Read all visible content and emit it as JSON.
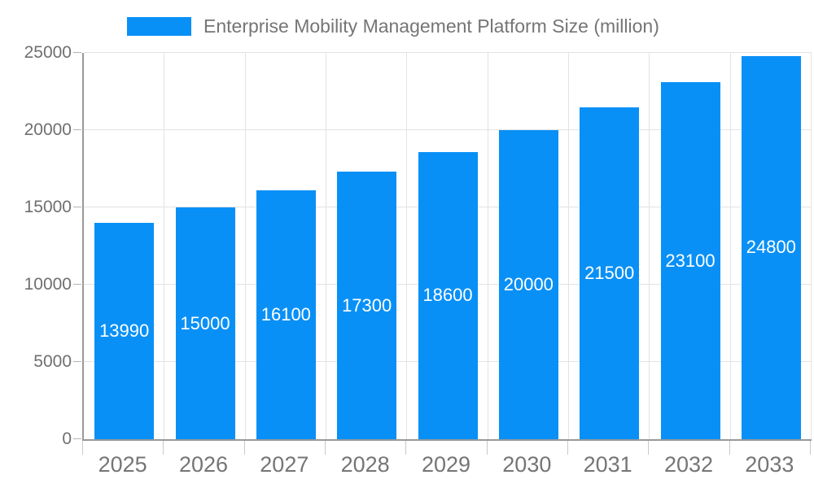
{
  "legend": {
    "label": "Enterprise Mobility Management Platform Size (million)"
  },
  "chart_data": {
    "type": "bar",
    "title": "Enterprise Mobility Management Platform Size (million)",
    "categories": [
      "2025",
      "2026",
      "2027",
      "2028",
      "2029",
      "2030",
      "2031",
      "2032",
      "2033"
    ],
    "values": [
      13990,
      15000,
      16100,
      17300,
      18600,
      20000,
      21500,
      23100,
      24800
    ],
    "xlabel": "",
    "ylabel": "",
    "ylim": [
      0,
      25000
    ],
    "yticks": [
      0,
      5000,
      10000,
      15000,
      20000,
      25000
    ],
    "grid": true,
    "legend_position": "top-center",
    "value_labels": "inside-middle",
    "colors": {
      "bar": "#0990f6",
      "value_label": "#ffffff",
      "axis_line": "#999999",
      "gridline": "#e3e3e3",
      "tick_label": "#757575",
      "legend_text": "#757575"
    }
  }
}
